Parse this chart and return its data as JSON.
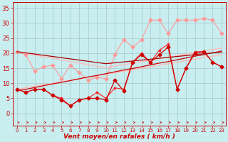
{
  "x": [
    0,
    1,
    2,
    3,
    4,
    5,
    6,
    7,
    8,
    9,
    10,
    11,
    12,
    13,
    14,
    15,
    16,
    17,
    18,
    19,
    20,
    21,
    22,
    23
  ],
  "series": [
    {
      "name": "light_pink_jagged",
      "y": [
        20.5,
        19.5,
        14.0,
        15.5,
        16.0,
        11.5,
        16.0,
        13.5,
        11.0,
        12.0,
        11.5,
        19.5,
        24.5,
        22.0,
        24.5,
        31.0,
        31.0,
        26.5,
        31.0,
        31.0,
        31.0,
        31.5,
        31.0,
        26.5
      ],
      "color": "#ff9999",
      "marker": "D",
      "markersize": 2.5,
      "linewidth": 0.8,
      "zorder": 2
    },
    {
      "name": "light_pink_regression_lower",
      "y": [
        8.0,
        8.5,
        9.0,
        9.5,
        10.0,
        10.5,
        11.0,
        11.5,
        12.0,
        12.5,
        13.0,
        13.5,
        14.0,
        14.5,
        15.0,
        15.5,
        16.0,
        16.5,
        17.0,
        17.5,
        18.0,
        18.5,
        19.0,
        19.5
      ],
      "color": "#ffbbbb",
      "marker": null,
      "markersize": 0,
      "linewidth": 1.0,
      "zorder": 1
    },
    {
      "name": "light_pink_regression_upper",
      "y": [
        20.5,
        19.9,
        19.4,
        18.8,
        18.3,
        17.7,
        17.2,
        16.7,
        16.2,
        15.7,
        15.2,
        15.7,
        16.2,
        16.7,
        17.2,
        17.7,
        18.2,
        18.7,
        19.2,
        19.7,
        20.2,
        20.7,
        21.2,
        21.7
      ],
      "color": "#ffbbbb",
      "marker": null,
      "markersize": 0,
      "linewidth": 1.0,
      "zorder": 1
    },
    {
      "name": "dark_red_vent_moyen",
      "y": [
        8,
        7,
        8,
        8,
        6,
        4.5,
        2.5,
        4.5,
        5,
        5,
        4.5,
        11,
        7.5,
        17,
        19.5,
        17,
        19.5,
        22,
        8,
        15,
        20,
        20.5,
        17,
        15.5
      ],
      "color": "#cc0000",
      "marker": "D",
      "markersize": 2.5,
      "linewidth": 0.9,
      "zorder": 4
    },
    {
      "name": "red_rafales",
      "y": [
        8,
        7,
        8,
        8,
        6,
        5,
        2.5,
        4.5,
        5,
        7,
        5,
        8.5,
        8,
        17,
        20,
        17,
        21,
        23,
        8,
        15,
        20.5,
        20.5,
        17,
        15.5
      ],
      "color": "#ff2222",
      "marker": "s",
      "markersize": 2,
      "linewidth": 0.8,
      "zorder": 3
    },
    {
      "name": "darkred_regression",
      "y": [
        7.5,
        8.0,
        8.6,
        9.2,
        9.8,
        10.3,
        10.9,
        11.5,
        12.1,
        12.6,
        13.2,
        13.8,
        14.4,
        14.9,
        15.5,
        16.1,
        16.7,
        17.2,
        17.8,
        18.4,
        19.0,
        19.5,
        20.1,
        20.7
      ],
      "color": "#cc0000",
      "marker": null,
      "markersize": 0,
      "linewidth": 0.9,
      "zorder": 3
    },
    {
      "name": "darkred_regression2",
      "y": [
        20.5,
        20.1,
        19.7,
        19.3,
        18.9,
        18.5,
        18.1,
        17.7,
        17.3,
        16.9,
        16.5,
        16.8,
        17.1,
        17.4,
        17.7,
        18.0,
        18.3,
        18.6,
        18.9,
        19.2,
        19.5,
        19.8,
        20.1,
        20.4
      ],
      "color": "#aa0000",
      "marker": null,
      "markersize": 0,
      "linewidth": 0.9,
      "zorder": 3
    }
  ],
  "xlabel": "Vent moyen/en rafales ( km/h )",
  "xlim": [
    -0.5,
    23.5
  ],
  "ylim": [
    -4,
    37
  ],
  "yticks": [
    0,
    5,
    10,
    15,
    20,
    25,
    30,
    35
  ],
  "xticks": [
    0,
    1,
    2,
    3,
    4,
    5,
    6,
    7,
    8,
    9,
    10,
    11,
    12,
    13,
    14,
    15,
    16,
    17,
    18,
    19,
    20,
    21,
    22,
    23
  ],
  "background_color": "#c8eef0",
  "grid_color": "#9fbfbf",
  "arrow_color": "#cc0000",
  "tick_color": "#cc0000",
  "spine_color": "#cc0000"
}
